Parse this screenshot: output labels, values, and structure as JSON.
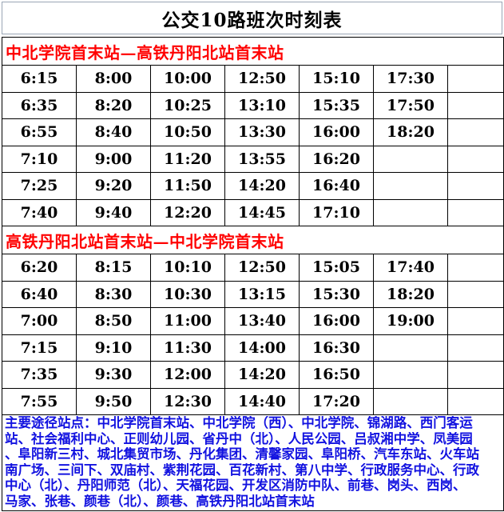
{
  "title": "公交10路班次时刻表",
  "colors": {
    "section_header_red": "#ff0000",
    "footer_blue": "#1212e0",
    "table_border": "#000000"
  },
  "sections": [
    {
      "header": "中北学院首末站—高铁丹阳北站首末站",
      "rows": [
        [
          "6:15",
          "8:00",
          "10:00",
          "12:50",
          "15:10",
          "17:30",
          ""
        ],
        [
          "6:35",
          "8:20",
          "10:25",
          "13:10",
          "15:35",
          "17:50",
          ""
        ],
        [
          "6:55",
          "8:40",
          "10:50",
          "13:30",
          "16:00",
          "18:20",
          ""
        ],
        [
          "7:10",
          "9:00",
          "11:20",
          "13:55",
          "16:20",
          "",
          ""
        ],
        [
          "7:25",
          "9:20",
          "11:50",
          "14:20",
          "16:40",
          "",
          ""
        ],
        [
          "7:40",
          "9:40",
          "12:20",
          "14:45",
          "17:10",
          "",
          ""
        ]
      ]
    },
    {
      "header": "高铁丹阳北站首末站—中北学院首末站",
      "rows": [
        [
          "6:20",
          "8:15",
          "10:10",
          "12:50",
          "15:05",
          "17:40",
          ""
        ],
        [
          "6:40",
          "8:30",
          "10:30",
          "13:15",
          "15:30",
          "18:20",
          ""
        ],
        [
          "7:00",
          "8:50",
          "11:00",
          "13:40",
          "16:00",
          "19:00",
          ""
        ],
        [
          "7:15",
          "9:10",
          "11:30",
          "14:00",
          "16:30",
          "",
          ""
        ],
        [
          "7:35",
          "9:30",
          "12:00",
          "14:20",
          "16:50",
          "",
          ""
        ],
        [
          "7:55",
          "9:50",
          "12:30",
          "14:40",
          "17:20",
          "",
          ""
        ]
      ]
    }
  ],
  "footer": {
    "lines": [
      "主要途径站点：中北学院首末站、中北学院（西）、中北学院、锦湖路、西门客运",
      "站、社会福利中心、正则幼儿园、省丹中（北）、人民公园、吕叔湘中学、凤美园",
      "、阜阳新三村、城北集贸市场、丹化集团、清馨家园、阜阳桥、汽车东站、火车站",
      "南广场、三间下、双庙村、紫荆花园、百花新村、第八中学、行政服务中心、行政",
      "中心（北）、丹阳师范（北）、天福花园、开发区消防中队、前巷、岗头、西岗、",
      "马家、张巷、颜巷（北）、颜巷、高铁丹阳北站首末站"
    ]
  }
}
